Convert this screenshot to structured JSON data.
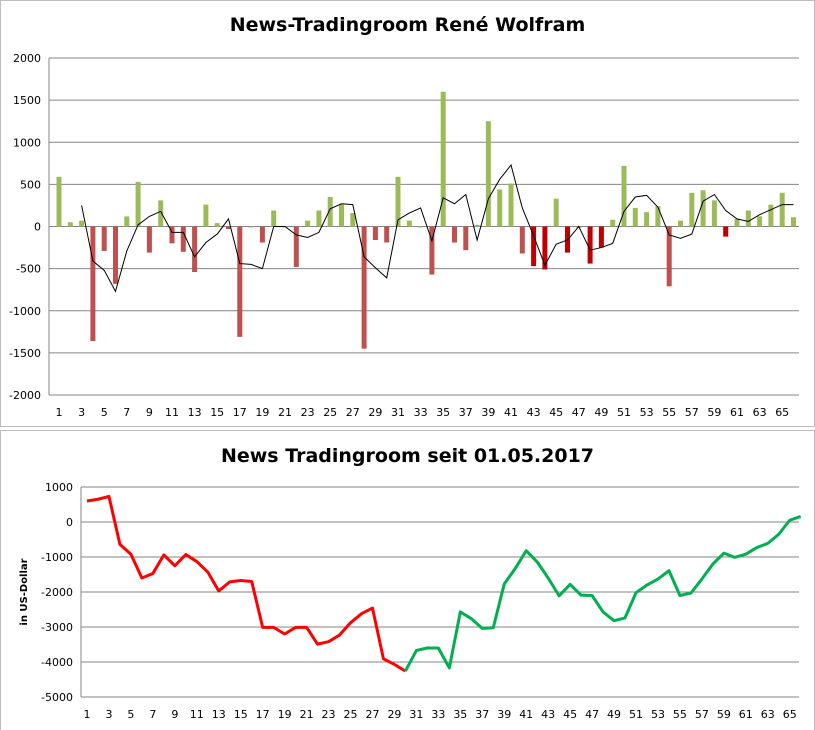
{
  "chart_data": [
    {
      "type": "bar",
      "title": "News-Tradingroom René Wolfram",
      "xlabel": "",
      "ylabel": "",
      "ylim": [
        -2000,
        2000
      ],
      "yticks": [
        2000,
        1500,
        1000,
        500,
        0,
        -500,
        -1000,
        -1500,
        -2000
      ],
      "xtick_labels": [
        "1",
        "3",
        "5",
        "7",
        "9",
        "11",
        "13",
        "15",
        "17",
        "19",
        "21",
        "23",
        "25",
        "27",
        "29",
        "31",
        "33",
        "35",
        "37",
        "39",
        "41",
        "43",
        "45",
        "47",
        "49",
        "51",
        "53",
        "55",
        "57",
        "59",
        "61",
        "63",
        "65"
      ],
      "grid": true,
      "colors": {
        "positive": "#9bbb59",
        "negative": "#c0504d",
        "negative_dark": "#c00000",
        "line": "#000000"
      },
      "values": [
        590,
        50,
        70,
        -1360,
        -290,
        -680,
        120,
        530,
        -310,
        310,
        -200,
        -300,
        -540,
        260,
        40,
        -30,
        -1310,
        0,
        -190,
        190,
        0,
        -480,
        70,
        190,
        350,
        260,
        160,
        -1450,
        -160,
        -190,
        590,
        70,
        0,
        -570,
        1600,
        -190,
        -280,
        20,
        1250,
        440,
        510,
        -320,
        -470,
        -510,
        330,
        -310,
        -10,
        -440,
        -250,
        80,
        720,
        220,
        170,
        240,
        -710,
        70,
        400,
        430,
        310,
        -120,
        90,
        190,
        120,
        260,
        400,
        110
      ],
      "dark_indices": [
        43,
        44,
        46,
        48,
        49,
        60
      ],
      "moving_average": [
        null,
        null,
        250,
        -410,
        -520,
        -770,
        -290,
        20,
        120,
        180,
        -70,
        -70,
        -360,
        -190,
        -90,
        90,
        -440,
        -450,
        -500,
        0,
        0,
        -100,
        -130,
        -70,
        210,
        270,
        260,
        -360,
        -490,
        -610,
        80,
        160,
        220,
        -170,
        340,
        270,
        380,
        -160,
        330,
        560,
        730,
        220,
        -110,
        -460,
        -210,
        -160,
        0,
        -280,
        -250,
        -200,
        180,
        350,
        370,
        230,
        -100,
        -140,
        -90,
        300,
        380,
        190,
        90,
        60,
        140,
        200,
        260,
        260
      ]
    },
    {
      "type": "line",
      "title": "News Tradingroom seit 01.05.2017",
      "xlabel": "",
      "ylabel": "in US-Dollar",
      "ylim": [
        -5000,
        1000
      ],
      "yticks": [
        1000,
        0,
        -1000,
        -2000,
        -3000,
        -4000,
        -5000
      ],
      "xtick_labels": [
        "1",
        "3",
        "5",
        "7",
        "9",
        "11",
        "13",
        "15",
        "17",
        "19",
        "21",
        "23",
        "25",
        "27",
        "29",
        "31",
        "33",
        "35",
        "37",
        "39",
        "41",
        "43",
        "45",
        "47",
        "49",
        "51",
        "53",
        "55",
        "57",
        "59",
        "61",
        "63",
        "65"
      ],
      "grid": true,
      "colors": {
        "first": "#ff0000",
        "second": "#00b050"
      },
      "split_at": 30,
      "values": [
        600,
        650,
        730,
        -640,
        -920,
        -1600,
        -1470,
        -940,
        -1250,
        -930,
        -1130,
        -1430,
        -1970,
        -1710,
        -1670,
        -1700,
        -3010,
        -3010,
        -3200,
        -3010,
        -3010,
        -3490,
        -3420,
        -3230,
        -2880,
        -2620,
        -2460,
        -3910,
        -4070,
        -4260,
        -3670,
        -3600,
        -3600,
        -4170,
        -2570,
        -2760,
        -3040,
        -3020,
        -1770,
        -1330,
        -820,
        -1140,
        -1600,
        -2110,
        -1780,
        -2090,
        -2100,
        -2570,
        -2820,
        -2740,
        -2020,
        -1800,
        -1630,
        -1390,
        -2100,
        -2030,
        -1630,
        -1200,
        -890,
        -1010,
        -920,
        -730,
        -610,
        -350,
        50,
        160
      ]
    }
  ]
}
